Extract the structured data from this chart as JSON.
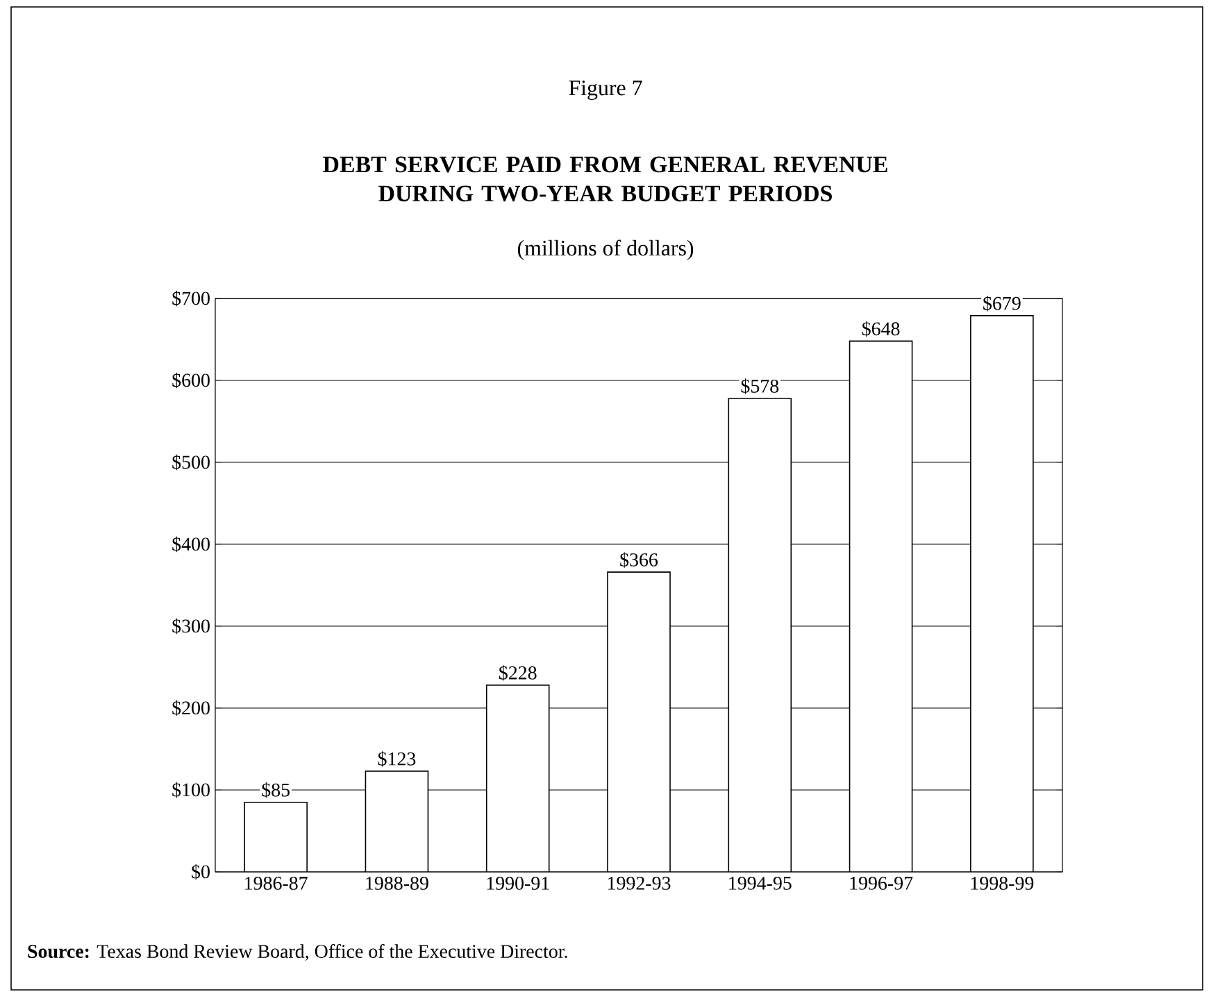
{
  "chart_data": {
    "type": "bar",
    "title": "DEBT SERVICE PAID FROM GENERAL REVENUE DURING TWO-YEAR BUDGET PERIODS",
    "subtitle": "(millions of dollars)",
    "annotations": [
      "Figure 7",
      "**Source:** Texas Bond Review Board, Office of the Executive Director."
    ],
    "categories": [
      "1986-87",
      "1988-89",
      "1990-91",
      "1992-93",
      "1994-95",
      "1996-97",
      "1998-99"
    ],
    "values": [
      85,
      123,
      228,
      366,
      578,
      648,
      679
    ],
    "value_labels": [
      "$85",
      "$123",
      "$228",
      "$366",
      "$578",
      "$648",
      "$679"
    ],
    "color": "#ffffff",
    "ylim": [
      0,
      700
    ],
    "yticks": [
      {
        "value": 0,
        "label": "$0"
      },
      {
        "value": 100,
        "label": "$100"
      },
      {
        "value": 200,
        "label": "$200"
      },
      {
        "value": 300,
        "label": "$300"
      },
      {
        "value": 400,
        "label": "$400"
      },
      {
        "value": 500,
        "label": "$500"
      },
      {
        "value": 600,
        "label": "$600"
      },
      {
        "value": 700,
        "label": "$700"
      }
    ],
    "grid": "y"
  }
}
